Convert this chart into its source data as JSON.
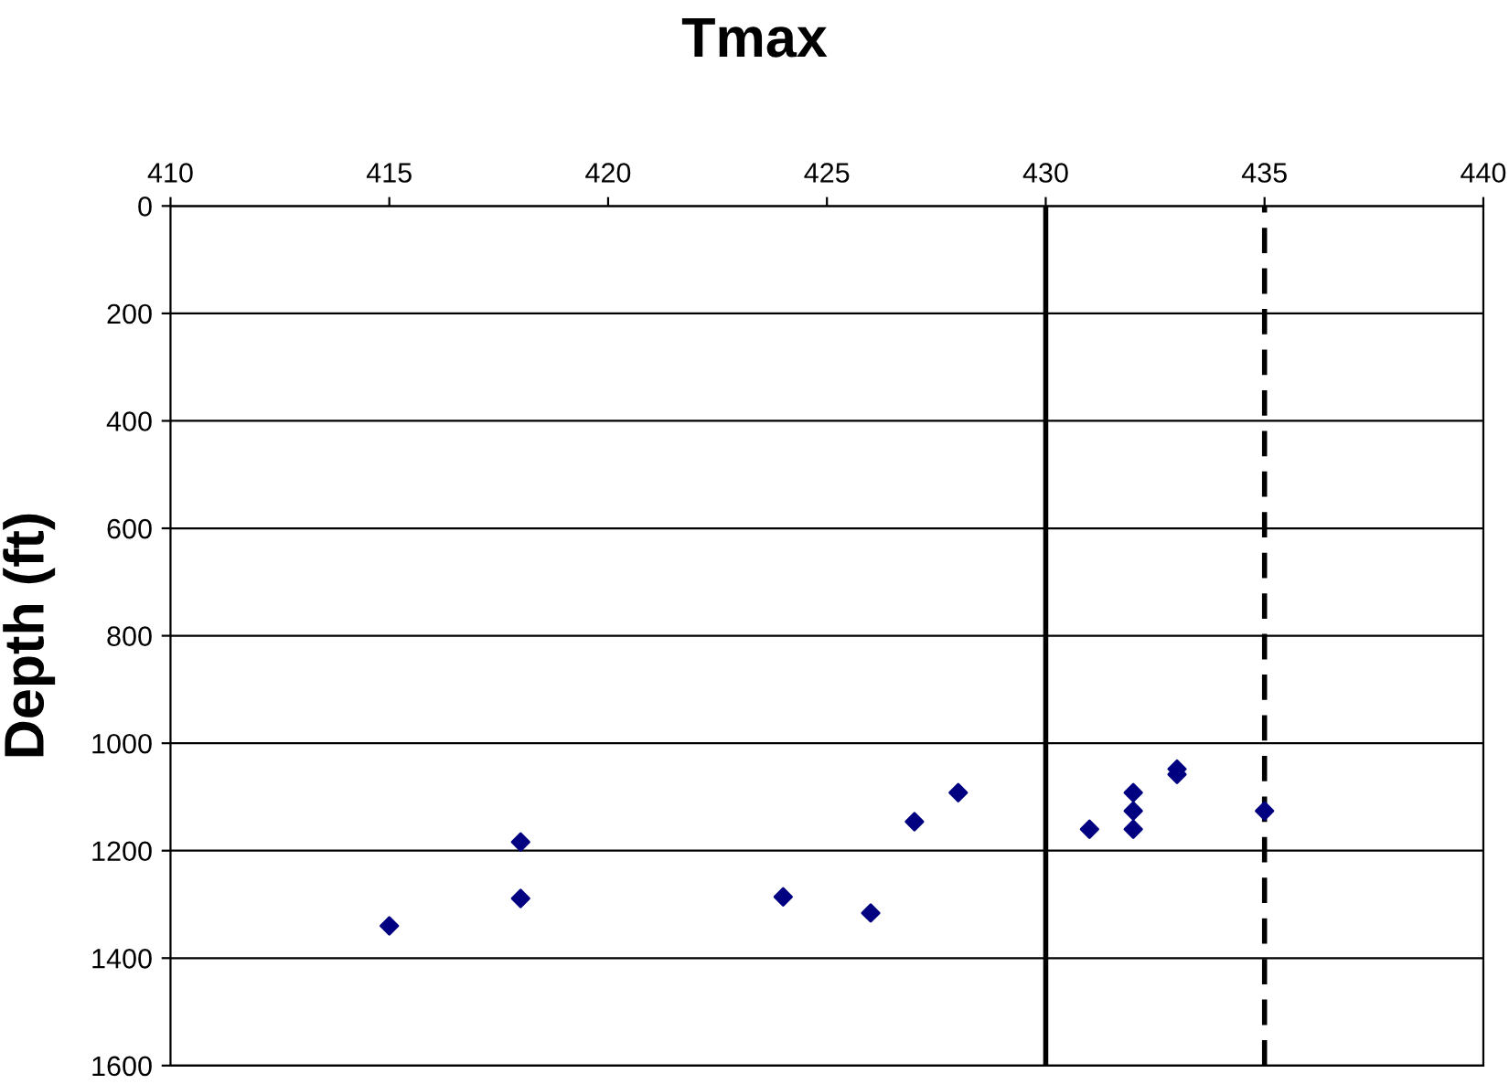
{
  "chart_data": {
    "type": "scatter",
    "title": "Tmax",
    "ylabel": "Depth (ft)",
    "x": [
      415,
      418,
      418,
      424,
      426,
      427,
      428,
      431,
      432,
      432,
      432,
      433,
      433,
      435
    ],
    "series": [
      {
        "color": "#000080",
        "values": [
          1340,
          1184,
          1289,
          1286,
          1316,
          1146,
          1092,
          1160,
          1092,
          1126,
          1160,
          1048,
          1058,
          1126
        ]
      }
    ],
    "xlim": [
      410,
      440
    ],
    "xticks": [
      410,
      415,
      420,
      425,
      430,
      435,
      440
    ],
    "ylim": [
      1600,
      0
    ],
    "yticks": [
      0,
      200,
      400,
      600,
      800,
      1000,
      1200,
      1400,
      1600
    ],
    "grid": "y",
    "marker": "diamond",
    "ref_lines": [
      {
        "axis": "x",
        "value": 430,
        "color": "#000000",
        "line_style": "solid"
      },
      {
        "axis": "x",
        "value": 435,
        "color": "#000000",
        "line_style": "dashed"
      }
    ]
  }
}
